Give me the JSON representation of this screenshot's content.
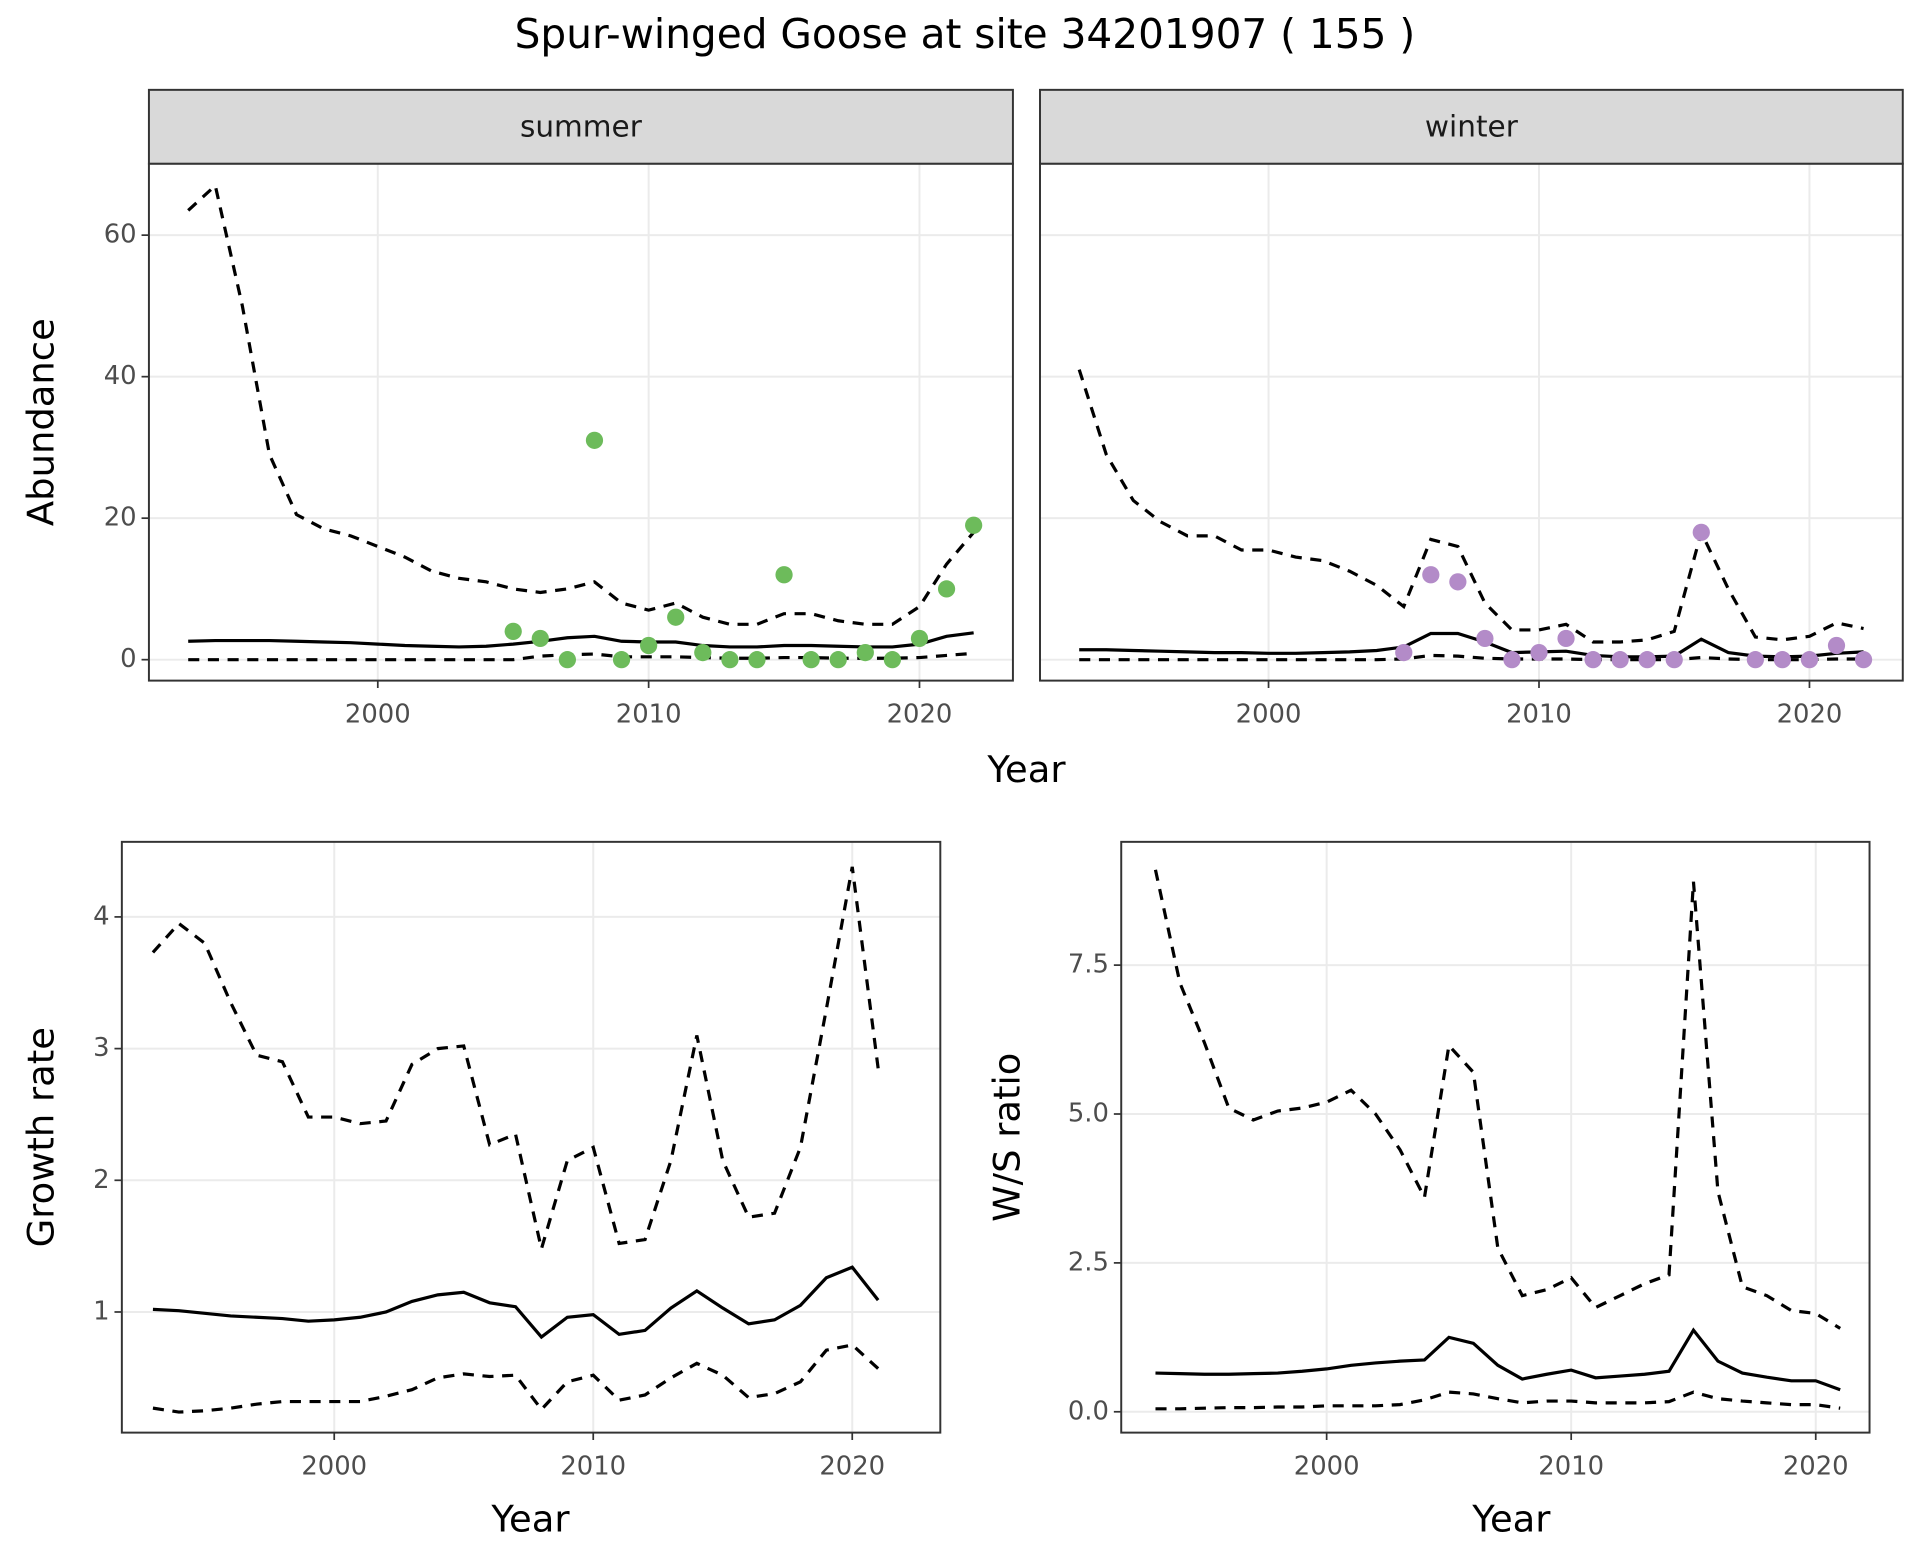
{
  "title": "Spur-winged Goose at site 34201907 ( 155 )",
  "chart_data": [
    {
      "type": "line",
      "facet": "summer",
      "ylabel": "Abundance",
      "xlabel": "Year",
      "x": [
        1993,
        1994,
        1995,
        1996,
        1997,
        1998,
        1999,
        2000,
        2001,
        2002,
        2003,
        2004,
        2005,
        2006,
        2007,
        2008,
        2009,
        2010,
        2011,
        2012,
        2013,
        2014,
        2015,
        2016,
        2017,
        2018,
        2019,
        2020,
        2021,
        2022
      ],
      "xlim": [
        1991.55,
        2023.45
      ],
      "xticks": [
        2000,
        2010,
        2020
      ],
      "ylim": [
        -2.96,
        70.1
      ],
      "yticks": [
        0,
        20,
        40,
        60
      ],
      "grid": true,
      "series": [
        {
          "style": "dashed",
          "color": "#000000",
          "values": [
            63.5,
            67,
            50,
            29,
            20.5,
            18.5,
            17.5,
            16,
            14.5,
            12.5,
            11.5,
            11,
            10,
            9.5,
            10,
            11,
            8,
            7,
            8,
            6,
            5,
            5,
            6.5,
            6.5,
            5.5,
            5,
            5,
            7.5,
            13.5,
            18
          ]
        },
        {
          "style": "solid",
          "color": "#000000",
          "values": [
            2.6,
            2.7,
            2.7,
            2.7,
            2.6,
            2.5,
            2.4,
            2.2,
            2.0,
            1.9,
            1.8,
            1.9,
            2.2,
            2.6,
            3.1,
            3.3,
            2.6,
            2.5,
            2.5,
            2.0,
            1.8,
            1.8,
            2.0,
            2.0,
            1.9,
            1.8,
            1.8,
            2.2,
            3.3,
            3.8
          ]
        },
        {
          "style": "dashed",
          "color": "#000000",
          "values": [
            0,
            0,
            0,
            0,
            0,
            0,
            0,
            0,
            0,
            0,
            0,
            0,
            0,
            0.5,
            0.7,
            0.8,
            0.4,
            0.4,
            0.4,
            0.3,
            0.2,
            0.2,
            0.3,
            0.3,
            0.2,
            0.2,
            0.2,
            0.3,
            0.6,
            0.9
          ]
        },
        {
          "style": "points",
          "color": "#6dbb5b",
          "values": [
            null,
            null,
            null,
            null,
            null,
            null,
            null,
            null,
            null,
            null,
            null,
            null,
            4,
            3,
            0,
            31,
            0,
            2,
            6,
            1,
            0,
            0,
            12,
            0,
            0,
            1,
            0,
            3,
            10,
            19
          ]
        }
      ]
    },
    {
      "type": "line",
      "facet": "winter",
      "x": [
        1993,
        1994,
        1995,
        1996,
        1997,
        1998,
        1999,
        2000,
        2001,
        2002,
        2003,
        2004,
        2005,
        2006,
        2007,
        2008,
        2009,
        2010,
        2011,
        2012,
        2013,
        2014,
        2015,
        2016,
        2017,
        2018,
        2019,
        2020,
        2021,
        2022
      ],
      "xlim": [
        1991.55,
        2023.45
      ],
      "xticks": [
        2000,
        2010,
        2020
      ],
      "ylim": [
        -2.96,
        70.1
      ],
      "grid": true,
      "series": [
        {
          "style": "dashed",
          "color": "#000000",
          "values": [
            41,
            29,
            22.5,
            19.5,
            17.5,
            17.5,
            15.5,
            15.5,
            14.5,
            14,
            12.5,
            10.5,
            7.5,
            17,
            16,
            8,
            4.2,
            4.2,
            5,
            2.5,
            2.5,
            2.8,
            4,
            18,
            10,
            3.2,
            2.8,
            3.3,
            5.2,
            4.4
          ]
        },
        {
          "style": "solid",
          "color": "#000000",
          "values": [
            1.4,
            1.4,
            1.3,
            1.2,
            1.1,
            1.0,
            1.0,
            0.9,
            0.9,
            1.0,
            1.1,
            1.3,
            1.8,
            3.7,
            3.7,
            2.5,
            1.0,
            1.1,
            1.2,
            0.6,
            0.4,
            0.4,
            0.5,
            2.9,
            1.0,
            0.5,
            0.4,
            0.5,
            0.9,
            1.1
          ]
        },
        {
          "style": "dashed",
          "color": "#000000",
          "values": [
            0,
            0,
            0,
            0,
            0,
            0,
            0,
            0,
            0,
            0,
            0,
            0,
            0.1,
            0.6,
            0.5,
            0.2,
            0.1,
            0.1,
            0.1,
            0,
            0,
            0,
            0,
            0.3,
            0.1,
            0,
            0,
            0,
            0.1,
            0.1
          ]
        },
        {
          "style": "points",
          "color": "#b38bc8",
          "values": [
            null,
            null,
            null,
            null,
            null,
            null,
            null,
            null,
            null,
            null,
            null,
            null,
            1,
            12,
            11,
            3,
            0,
            1,
            3,
            0,
            0,
            0,
            0,
            18,
            null,
            0,
            0,
            0,
            2,
            0
          ]
        }
      ]
    },
    {
      "type": "line",
      "ylabel": "Growth rate",
      "xlabel": "Year",
      "x": [
        1993,
        1994,
        1995,
        1996,
        1997,
        1998,
        1999,
        2000,
        2001,
        2002,
        2003,
        2004,
        2005,
        2006,
        2007,
        2008,
        2009,
        2010,
        2011,
        2012,
        2013,
        2014,
        2015,
        2016,
        2017,
        2018,
        2019,
        2020,
        2021
      ],
      "xlim": [
        1991.8,
        2023.4
      ],
      "xticks": [
        2000,
        2010,
        2020
      ],
      "ylim": [
        0.084,
        4.57
      ],
      "yticks": [
        1,
        2,
        3,
        4
      ],
      "grid": true,
      "series": [
        {
          "style": "dashed",
          "color": "#000000",
          "values": [
            3.73,
            3.95,
            3.8,
            3.35,
            2.95,
            2.9,
            2.48,
            2.48,
            2.43,
            2.45,
            2.88,
            3.0,
            3.02,
            2.27,
            2.35,
            1.48,
            2.15,
            2.25,
            1.52,
            1.55,
            2.15,
            3.1,
            2.15,
            1.72,
            1.75,
            2.25,
            3.3,
            4.38,
            2.85
          ]
        },
        {
          "style": "solid",
          "color": "#000000",
          "values": [
            1.02,
            1.01,
            0.99,
            0.97,
            0.96,
            0.95,
            0.93,
            0.94,
            0.96,
            1.0,
            1.08,
            1.13,
            1.15,
            1.07,
            1.04,
            0.81,
            0.96,
            0.98,
            0.83,
            0.86,
            1.03,
            1.16,
            1.03,
            0.91,
            0.94,
            1.05,
            1.26,
            1.34,
            1.09
          ]
        },
        {
          "style": "dashed",
          "color": "#000000",
          "values": [
            0.27,
            0.24,
            0.25,
            0.27,
            0.3,
            0.32,
            0.32,
            0.32,
            0.32,
            0.36,
            0.41,
            0.5,
            0.53,
            0.51,
            0.52,
            0.26,
            0.47,
            0.52,
            0.33,
            0.37,
            0.5,
            0.61,
            0.52,
            0.35,
            0.38,
            0.47,
            0.71,
            0.75,
            0.57
          ]
        }
      ]
    },
    {
      "type": "line",
      "ylabel": "W/S ratio",
      "xlabel": "Year",
      "x": [
        1993,
        1994,
        1995,
        1996,
        1997,
        1998,
        1999,
        2000,
        2001,
        2002,
        2003,
        2004,
        2005,
        2006,
        2007,
        2008,
        2009,
        2010,
        2011,
        2012,
        2013,
        2014,
        2015,
        2016,
        2017,
        2018,
        2019,
        2020,
        2021
      ],
      "xlim": [
        1991.6,
        2022.2
      ],
      "xticks": [
        2000,
        2010,
        2020
      ],
      "ylim": [
        -0.35,
        9.57
      ],
      "yticks": [
        {
          "value": 0,
          "label": "0.0"
        },
        2.5,
        {
          "value": 5,
          "label": "5.0"
        },
        7.5
      ],
      "grid": true,
      "series": [
        {
          "style": "dashed",
          "color": "#000000",
          "values": [
            9.1,
            7.2,
            6.2,
            5.1,
            4.9,
            5.05,
            5.1,
            5.2,
            5.4,
            5.0,
            4.4,
            3.6,
            6.15,
            5.7,
            2.75,
            1.95,
            2.05,
            2.25,
            1.75,
            1.95,
            2.15,
            2.3,
            8.9,
            3.7,
            2.1,
            1.95,
            1.7,
            1.65,
            1.4
          ]
        },
        {
          "style": "solid",
          "color": "#000000",
          "values": [
            0.65,
            0.64,
            0.63,
            0.63,
            0.64,
            0.65,
            0.68,
            0.72,
            0.78,
            0.82,
            0.85,
            0.87,
            1.25,
            1.15,
            0.78,
            0.55,
            0.63,
            0.7,
            0.57,
            0.6,
            0.63,
            0.68,
            1.37,
            0.85,
            0.65,
            0.58,
            0.52,
            0.52,
            0.37
          ]
        },
        {
          "style": "dashed",
          "color": "#000000",
          "values": [
            0.05,
            0.05,
            0.06,
            0.07,
            0.07,
            0.08,
            0.08,
            0.1,
            0.1,
            0.1,
            0.12,
            0.2,
            0.33,
            0.3,
            0.22,
            0.15,
            0.18,
            0.18,
            0.15,
            0.15,
            0.15,
            0.17,
            0.33,
            0.22,
            0.18,
            0.15,
            0.12,
            0.12,
            0.06
          ]
        }
      ]
    }
  ]
}
